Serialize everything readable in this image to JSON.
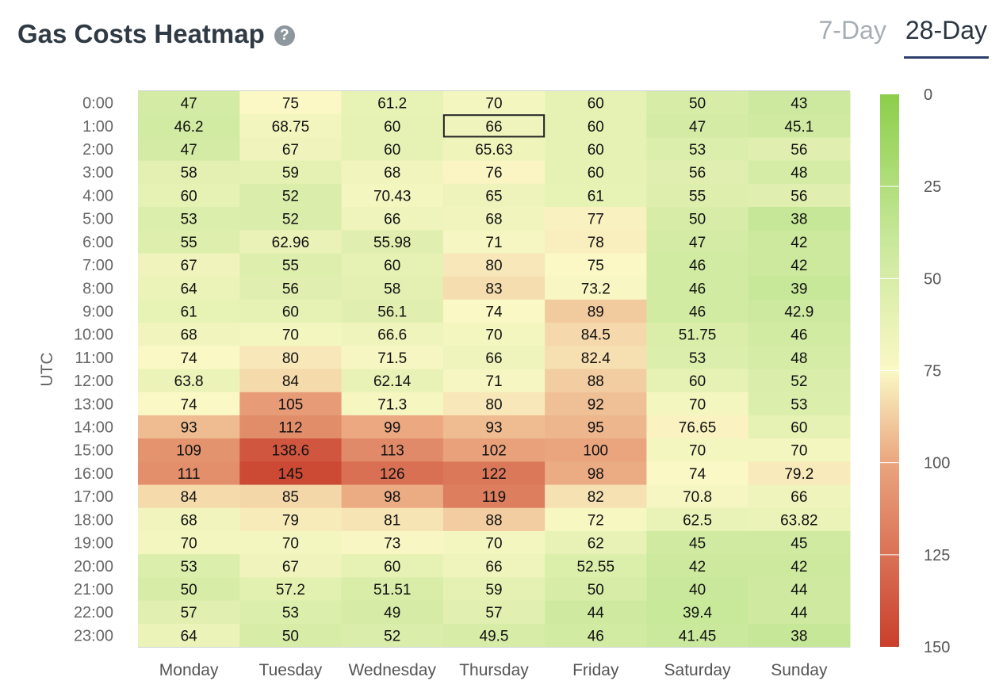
{
  "header": {
    "title": "Gas Costs Heatmap",
    "help_icon": "question-circle-icon",
    "tabs": [
      {
        "label": "7-Day",
        "active": false
      },
      {
        "label": "28-Day",
        "active": true
      }
    ]
  },
  "chart_data": {
    "type": "heatmap",
    "ylabel": "UTC",
    "xlabel": "",
    "x": [
      "Monday",
      "Tuesday",
      "Wednesday",
      "Thursday",
      "Friday",
      "Saturday",
      "Sunday"
    ],
    "y": [
      "0:00",
      "1:00",
      "2:00",
      "3:00",
      "4:00",
      "5:00",
      "6:00",
      "7:00",
      "8:00",
      "9:00",
      "10:00",
      "11:00",
      "12:00",
      "13:00",
      "14:00",
      "15:00",
      "16:00",
      "17:00",
      "18:00",
      "19:00",
      "20:00",
      "21:00",
      "22:00",
      "23:00"
    ],
    "values": [
      [
        "47",
        "75",
        "61.2",
        "70",
        "60",
        "50",
        "43"
      ],
      [
        "46.2",
        "68.75",
        "60",
        "66",
        "60",
        "47",
        "45.1"
      ],
      [
        "47",
        "67",
        "60",
        "65.63",
        "60",
        "53",
        "56"
      ],
      [
        "58",
        "59",
        "68",
        "76",
        "60",
        "56",
        "48"
      ],
      [
        "60",
        "52",
        "70.43",
        "65",
        "61",
        "55",
        "56"
      ],
      [
        "53",
        "52",
        "66",
        "68",
        "77",
        "50",
        "38"
      ],
      [
        "55",
        "62.96",
        "55.98",
        "71",
        "78",
        "47",
        "42"
      ],
      [
        "67",
        "55",
        "60",
        "80",
        "75",
        "46",
        "42"
      ],
      [
        "64",
        "56",
        "58",
        "83",
        "73.2",
        "46",
        "39"
      ],
      [
        "61",
        "60",
        "56.1",
        "74",
        "89",
        "46",
        "42.9"
      ],
      [
        "68",
        "70",
        "66.6",
        "70",
        "84.5",
        "51.75",
        "46"
      ],
      [
        "74",
        "80",
        "71.5",
        "66",
        "82.4",
        "53",
        "48"
      ],
      [
        "63.8",
        "84",
        "62.14",
        "71",
        "88",
        "60",
        "52"
      ],
      [
        "74",
        "105",
        "71.3",
        "80",
        "92",
        "70",
        "53"
      ],
      [
        "93",
        "112",
        "99",
        "93",
        "95",
        "76.65",
        "60"
      ],
      [
        "109",
        "138.6",
        "113",
        "102",
        "100",
        "70",
        "70"
      ],
      [
        "111",
        "145",
        "126",
        "122",
        "98",
        "74",
        "79.2"
      ],
      [
        "84",
        "85",
        "98",
        "119",
        "82",
        "70.8",
        "66"
      ],
      [
        "68",
        "79",
        "81",
        "88",
        "72",
        "62.5",
        "63.82"
      ],
      [
        "70",
        "70",
        "73",
        "70",
        "62",
        "45",
        "45"
      ],
      [
        "53",
        "67",
        "60",
        "66",
        "52.55",
        "42",
        "42"
      ],
      [
        "50",
        "57.2",
        "51.51",
        "59",
        "50",
        "40",
        "44"
      ],
      [
        "57",
        "53",
        "49",
        "57",
        "44",
        "39.4",
        "44"
      ],
      [
        "64",
        "50",
        "52",
        "49.5",
        "46",
        "41.45",
        "38"
      ]
    ],
    "highlighted_cell": {
      "row": "1:00",
      "col": "Thursday"
    },
    "color_scale": {
      "range": [
        0,
        150
      ],
      "ticks": [
        0,
        25,
        50,
        75,
        100,
        125,
        150
      ],
      "stops": [
        {
          "value": 0,
          "color": "#8cce4a"
        },
        {
          "value": 40,
          "color": "#c9e89b"
        },
        {
          "value": 75,
          "color": "#fbf8c6"
        },
        {
          "value": 100,
          "color": "#eaa57e"
        },
        {
          "value": 150,
          "color": "#c93f2c"
        }
      ]
    }
  }
}
